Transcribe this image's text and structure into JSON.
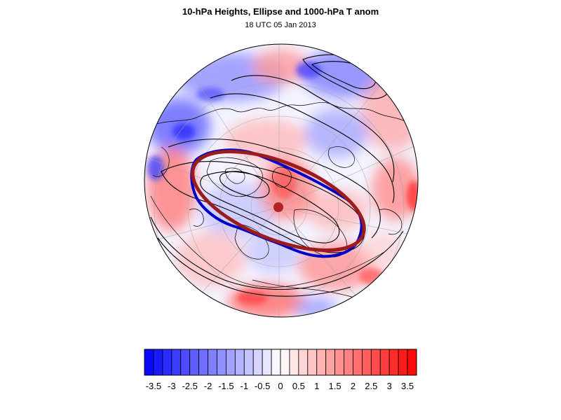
{
  "title": "10-hPa Heights, Ellipse and 1000-hPa T anom",
  "subtitle": "18 UTC 05 Jan 2013",
  "map": {
    "projection": "polar-stereographic-north",
    "field": "1000-hPa temperature anomaly (shaded)",
    "overlays": [
      "10-hPa height contours",
      "vortex edge contour",
      "fitted ellipse",
      "ellipse centroid"
    ],
    "colors": {
      "ellipse": "#9b1c1c",
      "vortex_edge": "#0000c8",
      "centroid": "#b22222",
      "height_contour": "#000000",
      "coastline": "#000000",
      "grid": "#a0a0a0"
    }
  },
  "colorbar": {
    "levels": [
      -3.75,
      -3.5,
      -3.25,
      -3,
      -2.75,
      -2.5,
      -2.25,
      -2,
      -1.75,
      -1.5,
      -1.25,
      -1,
      -0.75,
      -0.5,
      -0.25,
      0,
      0.25,
      0.5,
      0.75,
      1,
      1.25,
      1.5,
      1.75,
      2,
      2.25,
      2.5,
      2.75,
      3,
      3.25,
      3.5,
      3.75
    ],
    "tick_labels": [
      "-3.5",
      "-3",
      "-2.5",
      "-2",
      "-1.5",
      "-1",
      "-0.5",
      "0",
      "0.5",
      "1",
      "1.5",
      "2",
      "2.5",
      "3",
      "3.5"
    ],
    "negative_color": "#0000ff",
    "positive_color": "#ff0000",
    "neutral_color": "#ffffff"
  }
}
